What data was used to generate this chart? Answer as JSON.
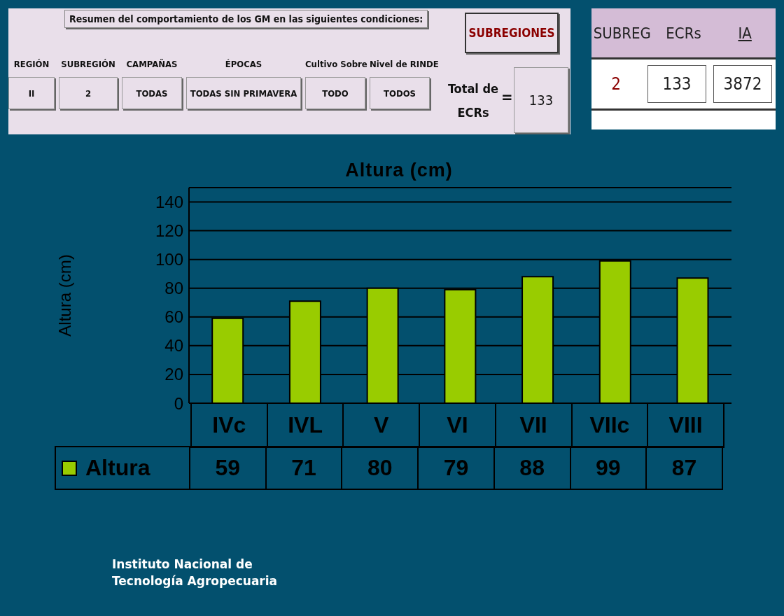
{
  "chart_data": [
    {
      "type": "other",
      "title": "Resumen del comportamiento de los GM en las siguientes condiciones:",
      "annotations": [
        "REGIÓN",
        "II",
        "SUBREGIÓN",
        "2",
        "CAMPAÑAS",
        "TODAS",
        "ÉPOCAS",
        "TODAS SIN PRIMAVERA",
        "Cultivo Sobre",
        "TODO",
        "Nivel de RINDE",
        "TODOS",
        "SUBREGIONES",
        "Total de ECRs",
        "=",
        "133"
      ]
    },
    {
      "type": "other",
      "annotations": [
        "SUBREG",
        "ECRs",
        "IA",
        "2",
        "133",
        "3872"
      ]
    },
    {
      "type": "bar",
      "title": "Altura (cm)",
      "ylabel": "Altura (cm)",
      "categories": [
        "IVc",
        "IVL",
        "V",
        "VI",
        "VII",
        "VIIc",
        "VIII"
      ],
      "series": [
        {
          "name": "Altura",
          "color": "#99cc00",
          "values": [
            59,
            71,
            80,
            79,
            88,
            99,
            87
          ]
        }
      ],
      "ylim": [
        0,
        150
      ],
      "yticks": [
        0,
        20,
        40,
        60,
        80,
        100,
        120,
        140
      ],
      "grid": "y",
      "legend": "bottom left",
      "data_labels": true,
      "annotations": [
        "Instituto Nacional de Tecnología Agropecuaria"
      ]
    }
  ]
}
